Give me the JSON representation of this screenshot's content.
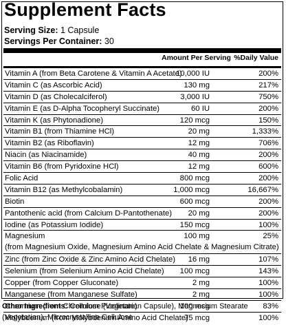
{
  "title": "Supplement Facts",
  "serving_size_label": "Serving Size:",
  "serving_size_value": "1 Capsule",
  "servings_per_container_label": "Servings Per Container:",
  "servings_per_container_value": "30",
  "header": {
    "amount": "Amount Per Serving",
    "dv": "%Daily Value"
  },
  "rows": [
    {
      "name": "Vitamin A (from Beta Carotene & Vitamin A Acetate)",
      "amount": "10,000 IU",
      "dv": "200%"
    },
    {
      "name": "Vitamin C (as Ascorbic Acid)",
      "amount": "130 mg",
      "dv": "217%"
    },
    {
      "name": "Vitamin D (as Cholecalciferol)",
      "amount": "3,000 IU",
      "dv": "750%"
    },
    {
      "name": "Vitamin E (as D-Alpha Tocopheryl Succinate)",
      "amount": "60 IU",
      "dv": "200%"
    },
    {
      "name": "Vitamin K (as Phytonadione)",
      "amount": "120 mcg",
      "dv": "150%"
    },
    {
      "name": "Vitamin B1 (from Thiamine HCl)",
      "amount": "20 mg",
      "dv": "1,333%"
    },
    {
      "name": "Vitamin B2 (as Riboflavin)",
      "amount": "12 mg",
      "dv": "706%"
    },
    {
      "name": "Niacin (as Niacinamide)",
      "amount": "40 mg",
      "dv": "200%"
    },
    {
      "name": "Vitamin B6 (from Pyridoxine HCl)",
      "amount": "12 mg",
      "dv": "600%"
    },
    {
      "name": "Folic Acid",
      "amount": "800 mcg",
      "dv": "200%"
    },
    {
      "name": "Vitamin B12 (as Methylcobalamin)",
      "amount": "1,000 mcg",
      "dv": "16,667%"
    },
    {
      "name": "Biotin",
      "amount": "600 mcg",
      "dv": "200%"
    },
    {
      "name": "Pantothenic acid (from Calcium D-Pantothenate)",
      "amount": "20 mg",
      "dv": "200%"
    },
    {
      "name": "Iodine (as Potassium Iodide)",
      "amount": "150 mcg",
      "dv": "100%"
    },
    {
      "name": "Magnesium",
      "sub": "(from Magnesium Oxide, Magnesium Amino Acid Chelate & Magnesium Citrate)",
      "amount": "100 mg",
      "dv": "25%"
    },
    {
      "name": "Zinc (from Zinc Oxide & Zinc Amino Acid Chelate)",
      "amount": "16 mg",
      "dv": "107%"
    },
    {
      "name": "Selenium (from Selenium Amino Acid Chelate)",
      "amount": "100 mcg",
      "dv": "143%"
    },
    {
      "name": "Copper (from Copper Gluconate)",
      "amount": "2 mg",
      "dv": "100%"
    },
    {
      "name": "Manganese (from Manganese Sulfate)",
      "amount": "2 mg",
      "dv": "100%"
    },
    {
      "name": "Chromium (from Chromium Picolinate)",
      "amount": "100 mcg",
      "dv": "83%"
    },
    {
      "name": "Molybdenum (from Molybdenum Amino Acid Chelate)",
      "amount": "75 mcg",
      "dv": "100%"
    }
  ],
  "other_label": "Other Ingredients:",
  "other_text": "Cellulose (Vegetarian Capsule), Magnesium Stearate (Vegetarian), Microcrystalline Cellulose"
}
